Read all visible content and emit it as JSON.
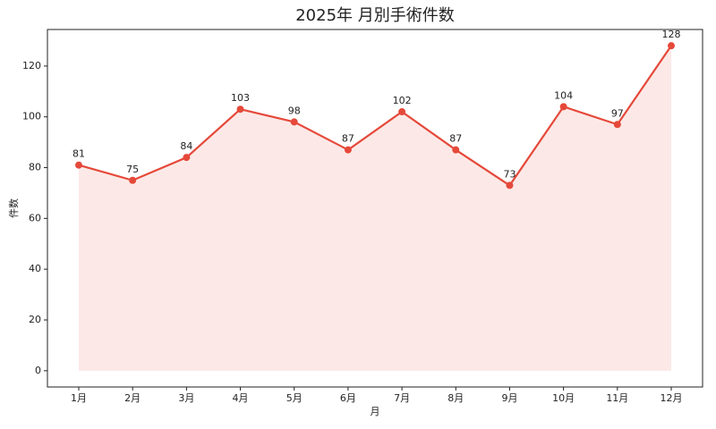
{
  "chart_data": {
    "type": "line",
    "title": "2025年 月別手術件数",
    "x_label": "月",
    "y_label": "件数",
    "categories": [
      "1月",
      "2月",
      "3月",
      "4月",
      "5月",
      "6月",
      "7月",
      "8月",
      "9月",
      "10月",
      "11月",
      "12月"
    ],
    "series": [
      {
        "name": "件数",
        "color": "#e5493a",
        "values": [
          81,
          75,
          84,
          103,
          98,
          87,
          102,
          87,
          73,
          104,
          97,
          128
        ]
      }
    ],
    "ylim": [
      -6.4,
      134.4
    ],
    "yticks": [
      0,
      20,
      40,
      60,
      80,
      100,
      120
    ],
    "fill": true,
    "data_labels": true
  }
}
